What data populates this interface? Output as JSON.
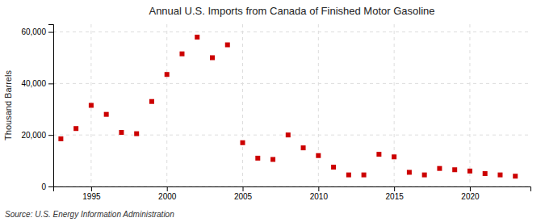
{
  "chart_data": {
    "type": "scatter",
    "title": "Annual U.S. Imports from Canada of Finished Motor Gasoline",
    "ylabel": "Thousand Barrels",
    "source": "Source: U.S. Energy Information Administration",
    "x": [
      1993,
      1994,
      1995,
      1996,
      1997,
      1998,
      1999,
      2000,
      2001,
      2002,
      2003,
      2004,
      2005,
      2006,
      2007,
      2008,
      2009,
      2010,
      2011,
      2012,
      2013,
      2014,
      2015,
      2016,
      2017,
      2018,
      2019,
      2020,
      2021,
      2022,
      2023
    ],
    "values": [
      18500,
      22500,
      31500,
      28000,
      21000,
      20500,
      33000,
      43500,
      51500,
      58000,
      50000,
      55000,
      17000,
      11000,
      10500,
      20000,
      15000,
      12000,
      7500,
      4500,
      4500,
      12500,
      11500,
      5500,
      4500,
      7000,
      6500,
      6000,
      5000,
      4500,
      4000
    ],
    "color": "#CC0000",
    "marker": "square",
    "xlim": [
      1992.5,
      2024
    ],
    "xticks": [
      1995,
      2000,
      2005,
      2010,
      2015,
      2020
    ],
    "ylim": [
      0,
      63000
    ],
    "yticks": [
      0,
      {
        "value": 20000,
        "label": "20,000"
      },
      {
        "value": 40000,
        "label": "40,000"
      },
      {
        "value": 60000,
        "label": "60,000"
      }
    ],
    "grid": true
  }
}
